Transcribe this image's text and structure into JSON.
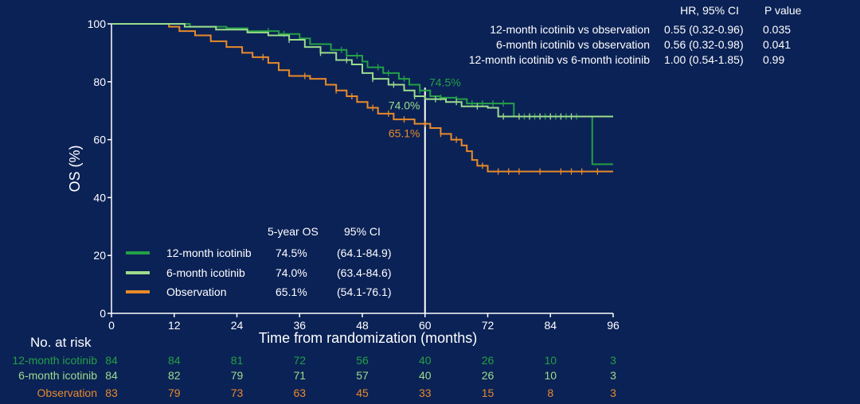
{
  "chart_data": {
    "type": "line",
    "xlabel": "Time from randomization (months)",
    "ylabel": "OS (%)",
    "xlim": [
      0,
      96
    ],
    "ylim": [
      0,
      100
    ],
    "xticks": [
      "0",
      "12",
      "24",
      "36",
      "48",
      "60",
      "72",
      "84",
      "96"
    ],
    "yticks": [
      "0",
      "20",
      "40",
      "60",
      "80",
      "100"
    ],
    "reference_line_x": 60,
    "colors": {
      "background": "#0b2256",
      "icotinib12": "#23a046",
      "icotinib6": "#9cdc8c",
      "observation": "#e88a2a"
    },
    "series": [
      {
        "name": "12-month icotinib",
        "color": "#23a046",
        "steps": [
          [
            0,
            100
          ],
          [
            15,
            99
          ],
          [
            22,
            98.5
          ],
          [
            26,
            97.5
          ],
          [
            32,
            96.5
          ],
          [
            36,
            95
          ],
          [
            38,
            93
          ],
          [
            42,
            91
          ],
          [
            45,
            89
          ],
          [
            48,
            87
          ],
          [
            49,
            85
          ],
          [
            52,
            83
          ],
          [
            55,
            81
          ],
          [
            57,
            79
          ],
          [
            59,
            77
          ],
          [
            61,
            75
          ],
          [
            63,
            74.5
          ],
          [
            66,
            74
          ],
          [
            68,
            72.5
          ],
          [
            72,
            72.5
          ],
          [
            77,
            68
          ],
          [
            92,
            68
          ],
          [
            92,
            51.5
          ],
          [
            96,
            51.5
          ]
        ]
      },
      {
        "name": "6-month icotinib",
        "color": "#9cdc8c",
        "steps": [
          [
            0,
            100
          ],
          [
            14,
            99
          ],
          [
            20,
            98
          ],
          [
            26,
            97
          ],
          [
            30,
            96
          ],
          [
            34,
            94.5
          ],
          [
            37,
            92
          ],
          [
            40,
            90
          ],
          [
            43,
            87.5
          ],
          [
            46,
            86
          ],
          [
            48,
            83
          ],
          [
            50,
            81
          ],
          [
            53,
            79
          ],
          [
            56,
            77
          ],
          [
            58,
            75
          ],
          [
            60,
            74
          ],
          [
            64,
            73
          ],
          [
            67,
            71.5
          ],
          [
            72,
            71
          ],
          [
            74,
            68
          ],
          [
            96,
            68
          ]
        ]
      },
      {
        "name": "Observation",
        "color": "#e88a2a",
        "steps": [
          [
            0,
            100
          ],
          [
            11,
            99
          ],
          [
            13,
            97.5
          ],
          [
            16,
            96
          ],
          [
            19,
            94
          ],
          [
            22,
            92
          ],
          [
            25,
            90
          ],
          [
            27,
            88.5
          ],
          [
            30,
            86.5
          ],
          [
            32,
            84
          ],
          [
            34,
            82
          ],
          [
            38,
            81
          ],
          [
            41,
            79
          ],
          [
            43,
            77
          ],
          [
            45,
            75
          ],
          [
            47,
            73
          ],
          [
            49,
            71
          ],
          [
            51,
            69
          ],
          [
            54,
            67
          ],
          [
            58,
            65.5
          ],
          [
            61,
            64
          ],
          [
            63,
            62
          ],
          [
            65,
            60
          ],
          [
            67,
            58
          ],
          [
            68,
            56
          ],
          [
            69,
            53
          ],
          [
            70,
            51
          ],
          [
            72,
            49
          ],
          [
            96,
            49
          ]
        ]
      }
    ],
    "censor_marks": {
      "12-month icotinib": [
        30,
        33,
        44,
        47,
        51,
        53,
        56,
        59,
        63,
        66,
        69,
        71,
        73,
        75,
        79,
        81,
        83,
        85,
        87,
        89
      ],
      "6-month icotinib": [
        34,
        40,
        45,
        50,
        54,
        58,
        62,
        66,
        70,
        75,
        78,
        80,
        82,
        84,
        86,
        88
      ],
      "Observation": [
        29,
        37,
        43,
        46,
        50,
        53,
        56,
        60,
        63,
        66,
        71,
        74,
        76,
        78,
        82,
        86,
        88,
        90,
        93
      ]
    },
    "annotations": [
      {
        "text": "74.5%",
        "x": 60.8,
        "y": 78.5,
        "color": "#23a046"
      },
      {
        "text": "74.0%",
        "x": 53,
        "y": 70.5,
        "color": "#9cdc8c"
      },
      {
        "text": "65.1%",
        "x": 53,
        "y": 60.8,
        "color": "#e88a2a"
      }
    ]
  },
  "legend": {
    "headers": [
      "5-year OS",
      "95% CI"
    ],
    "rows": [
      {
        "label": "12-month icotinib",
        "os": "74.5%",
        "ci": "(64.1-84.9)",
        "color": "#23a046"
      },
      {
        "label": "6-month icotinib",
        "os": "74.0%",
        "ci": "(63.4-84.6)",
        "color": "#9cdc8c"
      },
      {
        "label": "Observation",
        "os": "65.1%",
        "ci": "(54.1-76.1)",
        "color": "#e88a2a"
      }
    ]
  },
  "comparisons": {
    "headers": [
      "HR, 95% CI",
      "P value"
    ],
    "rows": [
      {
        "label": "12-month icotinib vs observation",
        "hr": "0.55 (0.32-0.96)",
        "p": "0.035"
      },
      {
        "label": "6-month icotinib vs observation",
        "hr": "0.56 (0.32-0.98)",
        "p": "0.041"
      },
      {
        "label": "12-month icotinib vs 6-month icotinib",
        "hr": "1.00 (0.54-1.85)",
        "p": "0.99"
      }
    ]
  },
  "risk_table": {
    "title": "No. at risk",
    "rows": [
      {
        "label": "12-month icotinib",
        "color": "#23a046",
        "values": [
          "84",
          "84",
          "81",
          "72",
          "56",
          "40",
          "26",
          "10",
          "3"
        ]
      },
      {
        "label": "6-month icotinib",
        "color": "#9cdc8c",
        "values": [
          "84",
          "82",
          "79",
          "71",
          "57",
          "40",
          "26",
          "10",
          "3"
        ]
      },
      {
        "label": "Observation",
        "color": "#e88a2a",
        "values": [
          "83",
          "79",
          "73",
          "63",
          "45",
          "33",
          "15",
          "8",
          "3"
        ]
      }
    ]
  }
}
